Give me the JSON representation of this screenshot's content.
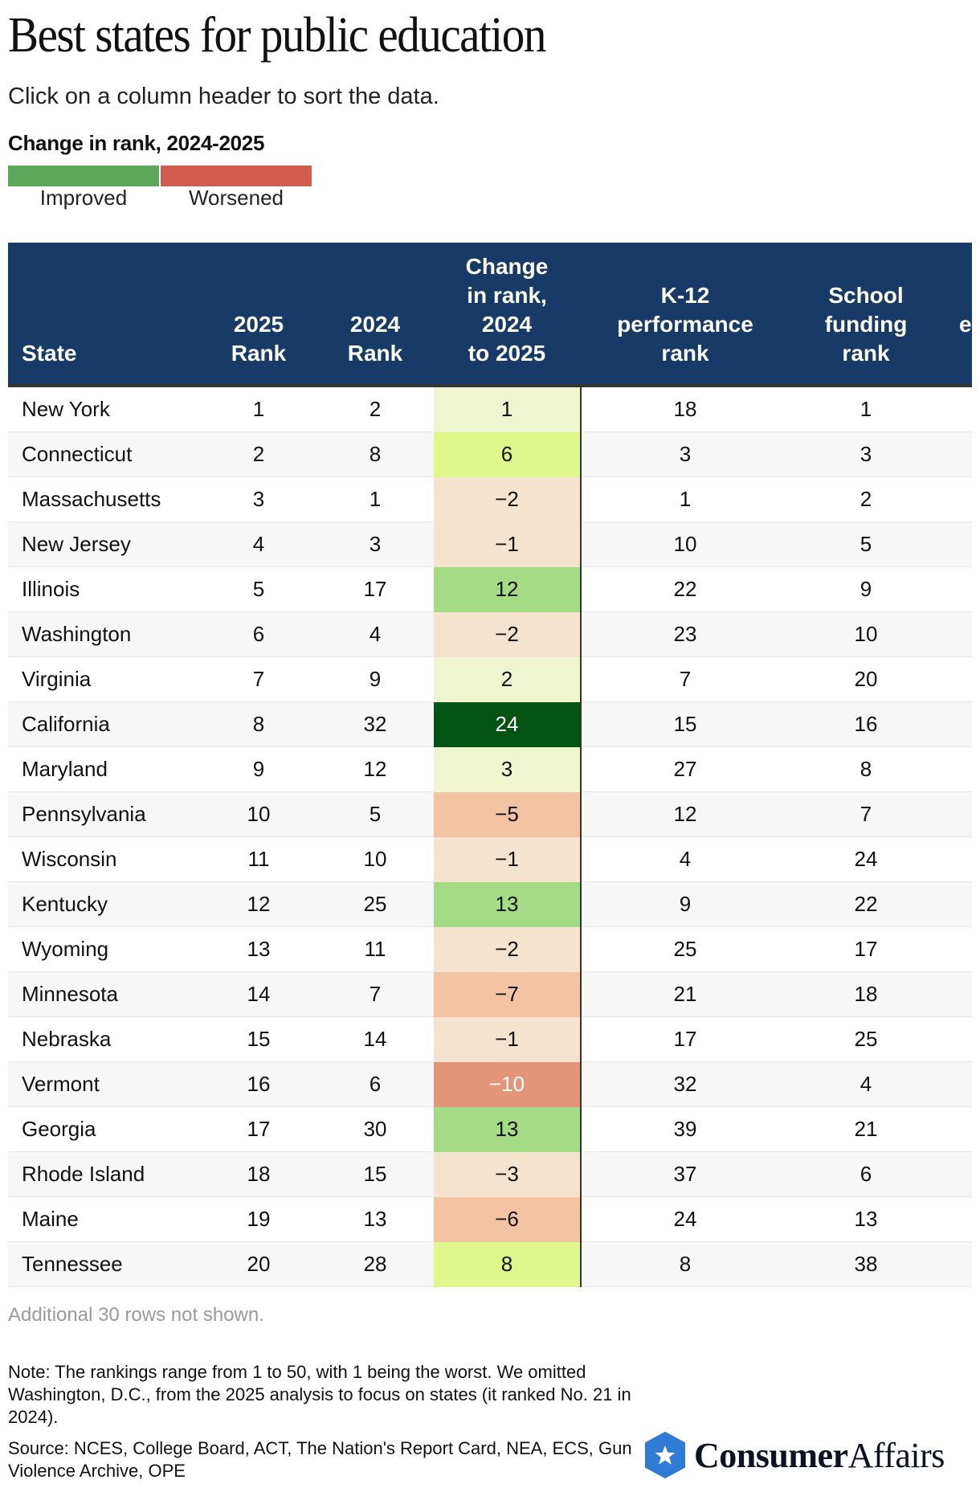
{
  "header": {
    "title": "Best states for public education",
    "subtitle": "Click on a column header to sort the data."
  },
  "legend": {
    "title": "Change in rank, 2024-2025",
    "items": [
      {
        "label": "Improved",
        "color": "#5ba85a"
      },
      {
        "label": "Worsened",
        "color": "#d35c51"
      }
    ]
  },
  "table": {
    "columns": [
      {
        "key": "state",
        "lines": [
          "State"
        ]
      },
      {
        "key": "rank_2025",
        "lines": [
          "2025",
          "Rank"
        ]
      },
      {
        "key": "rank_2024",
        "lines": [
          "2024",
          "Rank"
        ]
      },
      {
        "key": "change",
        "lines": [
          "Change",
          "in rank,",
          "2024",
          "to 2025"
        ]
      },
      {
        "key": "k12",
        "lines": [
          "K-12",
          "performance",
          "rank"
        ]
      },
      {
        "key": "funding",
        "lines": [
          "School",
          "funding",
          "rank"
        ]
      },
      {
        "key": "partial",
        "lines": [
          "e"
        ]
      }
    ],
    "header_color": "#173a66",
    "rows": [
      {
        "state": "New York",
        "rank_2025": "1",
        "rank_2024": "2",
        "change": "1",
        "change_value": 1,
        "k12": "18",
        "funding": "1"
      },
      {
        "state": "Connecticut",
        "rank_2025": "2",
        "rank_2024": "8",
        "change": "6",
        "change_value": 6,
        "k12": "3",
        "funding": "3"
      },
      {
        "state": "Massachusetts",
        "rank_2025": "3",
        "rank_2024": "1",
        "change": "−2",
        "change_value": -2,
        "k12": "1",
        "funding": "2"
      },
      {
        "state": "New Jersey",
        "rank_2025": "4",
        "rank_2024": "3",
        "change": "−1",
        "change_value": -1,
        "k12": "10",
        "funding": "5"
      },
      {
        "state": "Illinois",
        "rank_2025": "5",
        "rank_2024": "17",
        "change": "12",
        "change_value": 12,
        "k12": "22",
        "funding": "9"
      },
      {
        "state": "Washington",
        "rank_2025": "6",
        "rank_2024": "4",
        "change": "−2",
        "change_value": -2,
        "k12": "23",
        "funding": "10"
      },
      {
        "state": "Virginia",
        "rank_2025": "7",
        "rank_2024": "9",
        "change": "2",
        "change_value": 2,
        "k12": "7",
        "funding": "20"
      },
      {
        "state": "California",
        "rank_2025": "8",
        "rank_2024": "32",
        "change": "24",
        "change_value": 24,
        "k12": "15",
        "funding": "16"
      },
      {
        "state": "Maryland",
        "rank_2025": "9",
        "rank_2024": "12",
        "change": "3",
        "change_value": 3,
        "k12": "27",
        "funding": "8"
      },
      {
        "state": "Pennsylvania",
        "rank_2025": "10",
        "rank_2024": "5",
        "change": "−5",
        "change_value": -5,
        "k12": "12",
        "funding": "7"
      },
      {
        "state": "Wisconsin",
        "rank_2025": "11",
        "rank_2024": "10",
        "change": "−1",
        "change_value": -1,
        "k12": "4",
        "funding": "24"
      },
      {
        "state": "Kentucky",
        "rank_2025": "12",
        "rank_2024": "25",
        "change": "13",
        "change_value": 13,
        "k12": "9",
        "funding": "22"
      },
      {
        "state": "Wyoming",
        "rank_2025": "13",
        "rank_2024": "11",
        "change": "−2",
        "change_value": -2,
        "k12": "25",
        "funding": "17"
      },
      {
        "state": "Minnesota",
        "rank_2025": "14",
        "rank_2024": "7",
        "change": "−7",
        "change_value": -7,
        "k12": "21",
        "funding": "18"
      },
      {
        "state": "Nebraska",
        "rank_2025": "15",
        "rank_2024": "14",
        "change": "−1",
        "change_value": -1,
        "k12": "17",
        "funding": "25"
      },
      {
        "state": "Vermont",
        "rank_2025": "16",
        "rank_2024": "6",
        "change": "−10",
        "change_value": -10,
        "k12": "32",
        "funding": "4"
      },
      {
        "state": "Georgia",
        "rank_2025": "17",
        "rank_2024": "30",
        "change": "13",
        "change_value": 13,
        "k12": "39",
        "funding": "21"
      },
      {
        "state": "Rhode Island",
        "rank_2025": "18",
        "rank_2024": "15",
        "change": "−3",
        "change_value": -3,
        "k12": "37",
        "funding": "6"
      },
      {
        "state": "Maine",
        "rank_2025": "19",
        "rank_2024": "13",
        "change": "−6",
        "change_value": -6,
        "k12": "24",
        "funding": "13"
      },
      {
        "state": "Tennessee",
        "rank_2025": "20",
        "rank_2024": "28",
        "change": "8",
        "change_value": 8,
        "k12": "8",
        "funding": "38"
      }
    ],
    "change_colors": {
      "pos_small": "#eef5cf",
      "pos_mid": "#dff78c",
      "pos_large": "#a3dc84",
      "pos_max": "#035413",
      "neg_small": "#f5e3d0",
      "neg_mid": "#f2c4a4",
      "neg_large": "#e3957a"
    },
    "more_rows_note": "Additional 30 rows not shown."
  },
  "footer": {
    "note": "Note: The rankings range from 1 to 50, with 1 being the worst. We omitted Washington, D.C., from the 2025 analysis to focus on states (it ranked No. 21 in 2024).",
    "source": "Source: NCES, College Board, ACT, The Nation's Report Card, NEA, ECS, Gun Violence Archive, OPE",
    "logo": {
      "bold": "Consumer",
      "regular": "Affairs",
      "icon": "star-hexagon-icon",
      "color": "#2f7bd6"
    }
  }
}
